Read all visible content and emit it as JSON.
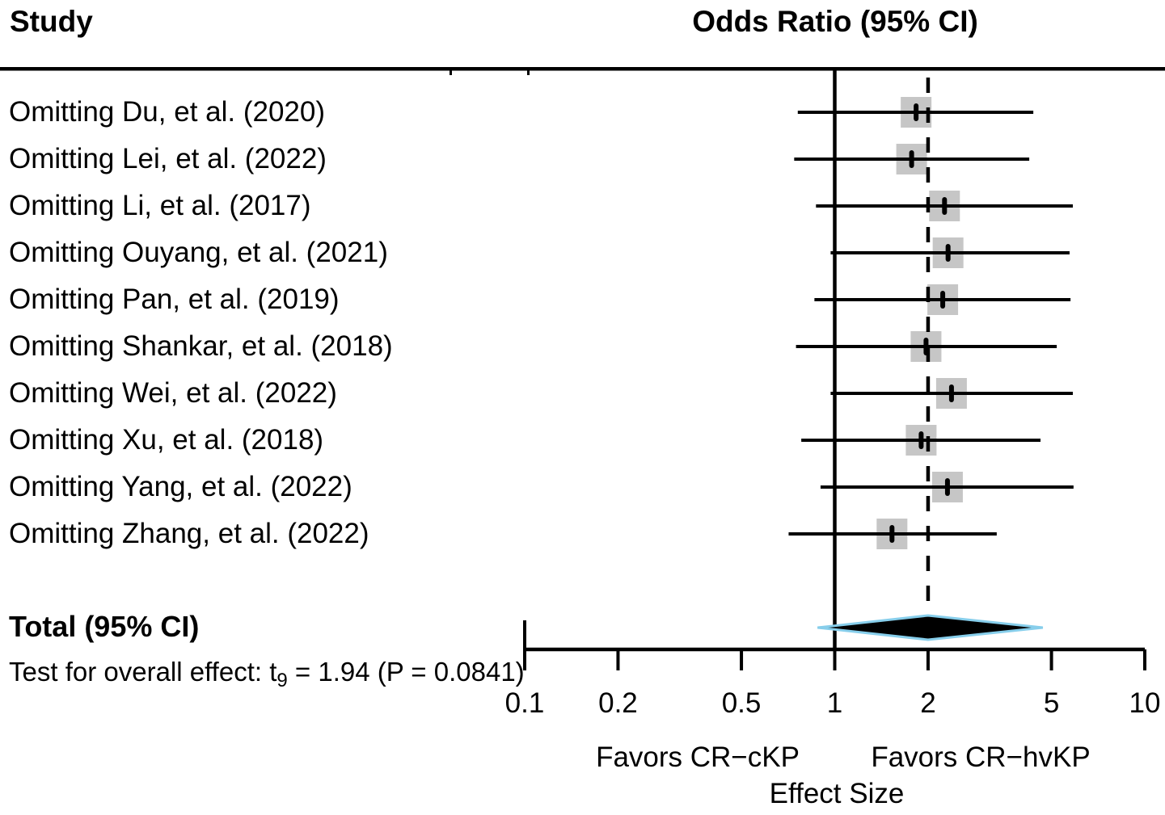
{
  "header": {
    "study_col": "Study",
    "or_col": "Odds Ratio (95% CI)"
  },
  "footer": {
    "test_prefix": "Test for overall effect: t",
    "test_sub": "9",
    "test_suffix": " = 1.94 (P = 0.0841)"
  },
  "chart_data": {
    "type": "forest",
    "scale": "log10",
    "title": "Odds Ratio (95% CI)",
    "x_axis": {
      "label": "Effect Size",
      "tick_labels": [
        "0.1",
        "0.2",
        "0.5",
        "1",
        "2",
        "5",
        "10"
      ],
      "tick_values": [
        0.1,
        0.2,
        0.5,
        1,
        2,
        5,
        10
      ],
      "range": [
        0.1,
        10
      ]
    },
    "null_line_value": 1,
    "favors_left": "Favors CR−cKP",
    "favors_right": "Favors CR−hvKP",
    "rows": [
      {
        "label": "Omitting Du, et al. (2020)",
        "or": 1.83,
        "ci_low": 0.76,
        "ci_high": 4.37
      },
      {
        "label": "Omitting Lei, et al. (2022)",
        "or": 1.77,
        "ci_low": 0.74,
        "ci_high": 4.24
      },
      {
        "label": "Omitting Li, et al. (2017)",
        "or": 2.26,
        "ci_low": 0.87,
        "ci_high": 5.86
      },
      {
        "label": "Omitting Ouyang, et al. (2021)",
        "or": 2.32,
        "ci_low": 0.97,
        "ci_high": 5.72
      },
      {
        "label": "Omitting Pan, et al. (2019)",
        "or": 2.23,
        "ci_low": 0.86,
        "ci_high": 5.76
      },
      {
        "label": "Omitting Shankar, et al. (2018)",
        "or": 1.97,
        "ci_low": 0.75,
        "ci_high": 5.2
      },
      {
        "label": "Omitting Wei, et al. (2022)",
        "or": 2.38,
        "ci_low": 0.97,
        "ci_high": 5.86
      },
      {
        "label": "Omitting Xu, et al. (2018)",
        "or": 1.9,
        "ci_low": 0.78,
        "ci_high": 4.61
      },
      {
        "label": "Omitting Yang, et al. (2022)",
        "or": 2.31,
        "ci_low": 0.9,
        "ci_high": 5.89
      },
      {
        "label": "Omitting Zhang, et al. (2022)",
        "or": 1.53,
        "ci_low": 0.71,
        "ci_high": 3.33
      }
    ],
    "total": {
      "label": "Total (95% CI)",
      "or": 2.0,
      "ci_low": 0.88,
      "ci_high": 4.69
    },
    "colors": {
      "square": "#c6c6c6",
      "line": "#000000",
      "diamond_fill": "#000000",
      "diamond_border": "#87ceeb",
      "text": "#000000"
    }
  }
}
